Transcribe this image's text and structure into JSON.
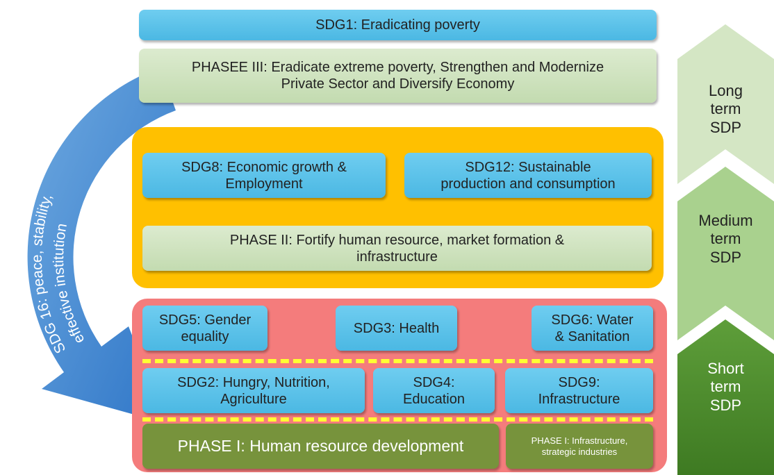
{
  "sdg1": "SDG1: Eradicating poverty",
  "phase3": [
    "PHASEE III: Eradicate extreme poverty, Strengthen and Modernize",
    "Private Sector and Diversify Economy"
  ],
  "medium": {
    "sdg8": [
      "SDG8: Economic growth &",
      "Employment"
    ],
    "sdg12": [
      "SDG12: Sustainable",
      "production and consumption"
    ],
    "phase2": [
      "PHASE II: Fortify human resource, market formation &",
      "infrastructure"
    ]
  },
  "short": {
    "sdg5": [
      "SDG5: Gender",
      "equality"
    ],
    "sdg3": "SDG3: Health",
    "sdg6": [
      "SDG6: Water",
      "& Sanitation"
    ],
    "sdg2": [
      "SDG2: Hungry, Nutrition,",
      "Agriculture"
    ],
    "sdg4": [
      "SDG4:",
      "Education"
    ],
    "sdg9": [
      "SDG9:",
      "Infrastructure"
    ],
    "phase1": "PHASE I: Human resource development",
    "phase1b": [
      "PHASE I: Infrastructure,",
      "strategic industries"
    ]
  },
  "arrow": [
    "SDG 16: peace, stability,",
    "effective institution"
  ],
  "terms": {
    "long": [
      "Long",
      "term",
      "SDP"
    ],
    "medium": [
      "Medium",
      "term",
      "SDP"
    ],
    "short": [
      "Short",
      "term",
      "SDP"
    ]
  }
}
